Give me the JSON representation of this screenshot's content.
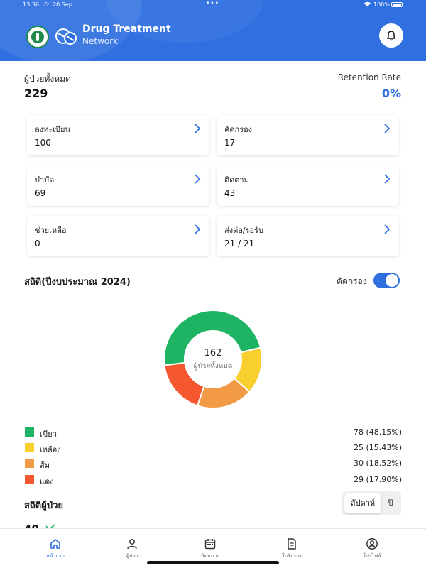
{
  "status_bar": {
    "time": "13:36",
    "date": "Fri 20 Sep",
    "battery": "100%"
  },
  "header": {
    "title": "Drug Treatment",
    "subtitle": "Network"
  },
  "summary": {
    "total_label": "ผู้ป่วยทั้งหมด",
    "total_value": "229",
    "retention_label": "Retention Rate",
    "retention_value": "0%"
  },
  "cards": [
    {
      "label": "ลงทะเบียน",
      "value": "100"
    },
    {
      "label": "คัดกรอง",
      "value": "17"
    },
    {
      "label": "บำบัด",
      "value": "69"
    },
    {
      "label": "ติดตาม",
      "value": "43"
    },
    {
      "label": "ช่วยเหลือ",
      "value": "0"
    },
    {
      "label": "ส่งต่อ/รอรับ",
      "value": "21 / 21"
    }
  ],
  "stats": {
    "title": "สถิติ(ปีงบประมาณ 2024)",
    "toggle_label": "คัดกรอง",
    "toggle_on": true
  },
  "chart_data": {
    "type": "pie",
    "center_value": "162",
    "center_label": "ผู้ป่วยทั้งหมด",
    "categories": [
      "เขียว",
      "เหลือง",
      "ส้ม",
      "แดง"
    ],
    "values": [
      78,
      25,
      30,
      29
    ],
    "labels": [
      "78 (48.15%)",
      "25 (15.43%)",
      "30 (18.52%)",
      "29 (17.90%)"
    ],
    "colors": [
      "#1fb463",
      "#f9cf2f",
      "#f29a45",
      "#f5582f"
    ]
  },
  "patients": {
    "title": "สถิติผู้ป่วย",
    "period_active": "สัปดาห์",
    "period_other": "ปี",
    "value": "40"
  },
  "tabs": [
    {
      "label": "หน้าแรก",
      "icon": "home-icon"
    },
    {
      "label": "ผู้ป่วย",
      "icon": "user-icon"
    },
    {
      "label": "นัดหมาย",
      "icon": "calendar-icon"
    },
    {
      "label": "ใบรับรอง",
      "icon": "document-icon"
    },
    {
      "label": "โปรไฟล์",
      "icon": "profile-icon"
    }
  ],
  "colors": {
    "primary": "#2f6fe0",
    "trend_up": "#1fb463"
  }
}
